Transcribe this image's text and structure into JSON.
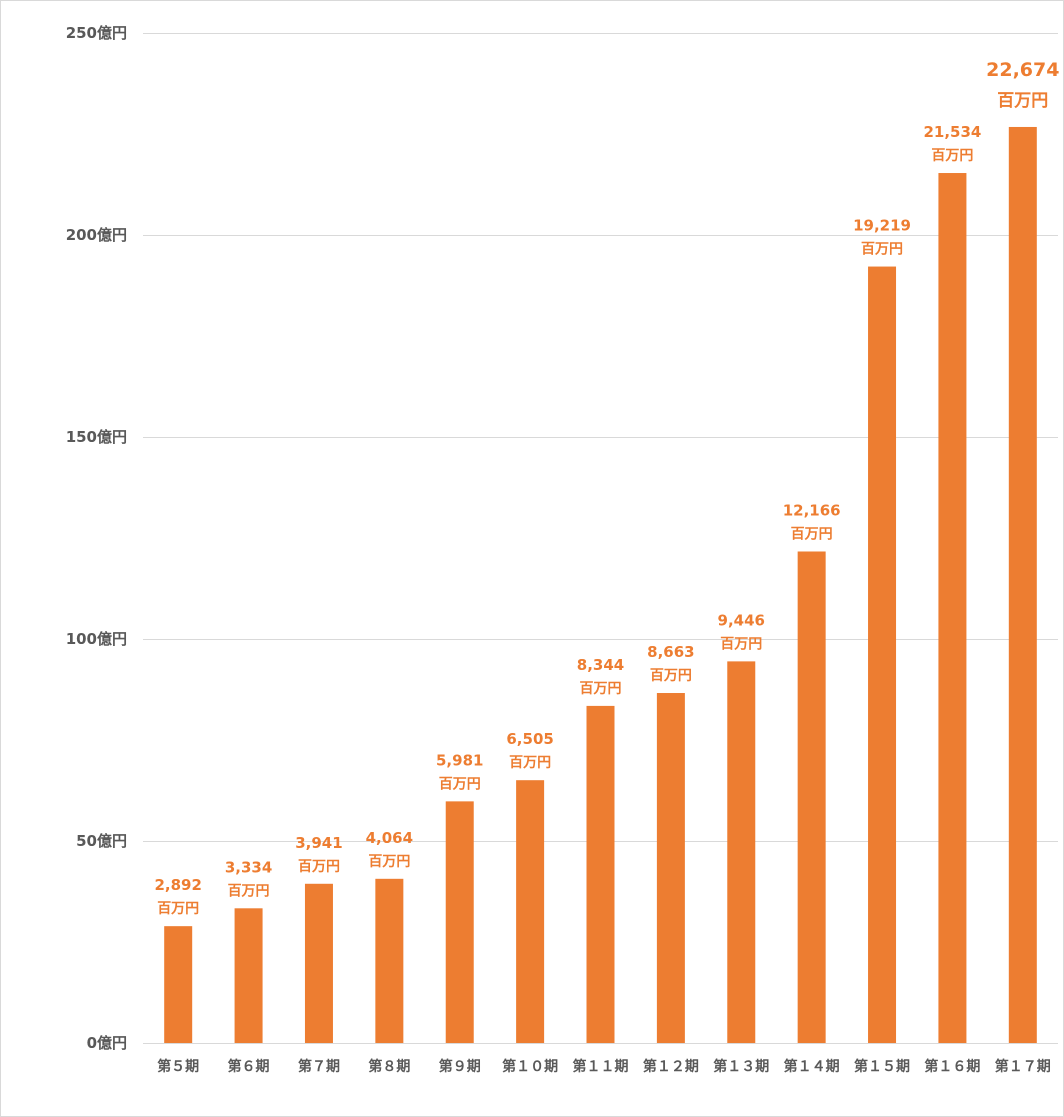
{
  "chart_data": {
    "type": "bar",
    "categories": [
      "第５期",
      "第６期",
      "第７期",
      "第８期",
      "第９期",
      "第１０期",
      "第１１期",
      "第１２期",
      "第１３期",
      "第１４期",
      "第１５期",
      "第１６期",
      "第１７期"
    ],
    "values": [
      28.92,
      33.34,
      39.41,
      40.64,
      59.81,
      65.05,
      83.44,
      86.63,
      94.46,
      121.66,
      192.19,
      215.34,
      226.74
    ],
    "data_labels": [
      "2,892",
      "3,334",
      "3,941",
      "4,064",
      "5,981",
      "6,505",
      "8,344",
      "8,663",
      "9,446",
      "12,166",
      "19,219",
      "21,534",
      "22,674"
    ],
    "data_label_unit": "百万円",
    "emphasized_label_index": 12,
    "yticks": [
      0,
      50,
      100,
      150,
      200,
      250
    ],
    "ytick_labels": [
      "0億円",
      "50億円",
      "100億円",
      "150億円",
      "200億円",
      "250億円"
    ],
    "ylim": [
      0,
      250
    ],
    "grid": true
  },
  "colors": {
    "bar": "#ED7D31",
    "data_label": "#ED7D31",
    "axis_text": "#595959",
    "grid": "#D9D9D9",
    "border": "#D9D9D9"
  }
}
